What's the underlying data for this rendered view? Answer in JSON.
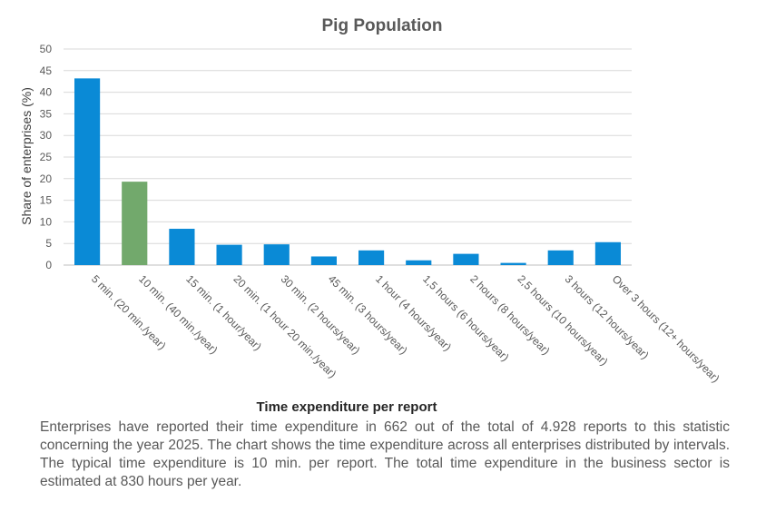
{
  "chart_data": {
    "type": "bar",
    "title": "Pig Population",
    "xlabel": "Time expenditure per report",
    "ylabel": "Share of enterprises  (%)",
    "ylim": [
      0,
      50
    ],
    "yticks": [
      0,
      5,
      10,
      15,
      20,
      25,
      30,
      35,
      40,
      45,
      50
    ],
    "grid": true,
    "legend": "none",
    "categories": [
      "5 min. (20 min./year)",
      "10 min. (40 min./year)",
      "15 min. (1 hour/year)",
      "20 min. (1 hour 20 min./year)",
      "30 min. (2 hours/year)",
      "45 min. (3 hours/year)",
      "1 hour (4 hours/year)",
      "1,5 hours (6 hours/year)",
      "2 hours (8 hours/year)",
      "2,5 hours (10 hours/year)",
      "3 hours (12 hours/year)",
      "Over 3 hours (12+ hours/year)"
    ],
    "values": [
      43.2,
      19.3,
      8.4,
      4.7,
      4.8,
      2.0,
      3.4,
      1.1,
      2.6,
      0.5,
      3.4,
      5.3
    ],
    "colors": {
      "default": "#0a8ad6",
      "highlight": "#72a96c",
      "highlight_index": 1
    }
  },
  "description": "Enterprises have reported their time expenditure in 662 out of the total of 4.928 reports to this statistic concerning the year 2025. The chart shows the time expenditure across all enterprises distributed by intervals. The typical time expenditure is 10 min. per report. The total time expenditure in the business sector is estimated at 830 hours per year."
}
